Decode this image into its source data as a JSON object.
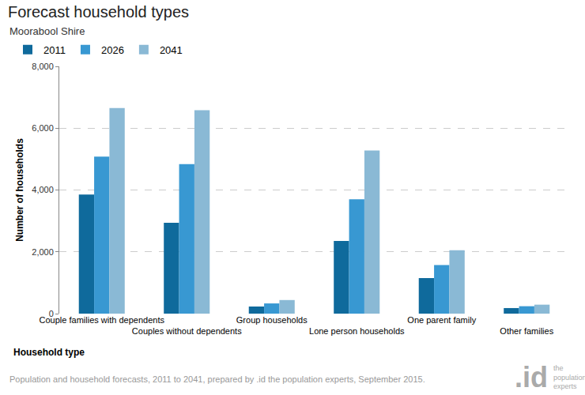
{
  "chart_data": {
    "type": "bar",
    "title": "Forecast household types",
    "subtitle": "Moorabool Shire",
    "x_label": "Household type",
    "y_label": "Number of households",
    "categories": [
      "Couple families with dependents",
      "Couples without dependents",
      "Group households",
      "Lone person households",
      "One parent family",
      "Other families"
    ],
    "series": [
      {
        "name": "2011",
        "color": "#0f6a9c",
        "values": [
          3850,
          2940,
          230,
          2350,
          1150,
          180
        ]
      },
      {
        "name": "2026",
        "color": "#3898d2",
        "values": [
          5080,
          4840,
          330,
          3700,
          1570,
          240
        ]
      },
      {
        "name": "2041",
        "color": "#8ab9d5",
        "values": [
          6650,
          6580,
          440,
          5280,
          2050,
          290
        ]
      }
    ],
    "ylim": [
      0,
      8000
    ],
    "yticks": [
      0,
      {
        "value": 2000,
        "label": "2,000"
      },
      {
        "value": 4000,
        "label": "4,000"
      },
      {
        "value": 6000,
        "label": "6,000"
      },
      {
        "value": 8000,
        "label": "8,000"
      }
    ],
    "grid": true,
    "legend": "top-left",
    "source": "Population and household forecasts, 2011 to 2041, prepared by .id the population experts, September 2015.",
    "logo": {
      "mark": ".id",
      "text": [
        "the",
        "population",
        "experts"
      ]
    }
  }
}
